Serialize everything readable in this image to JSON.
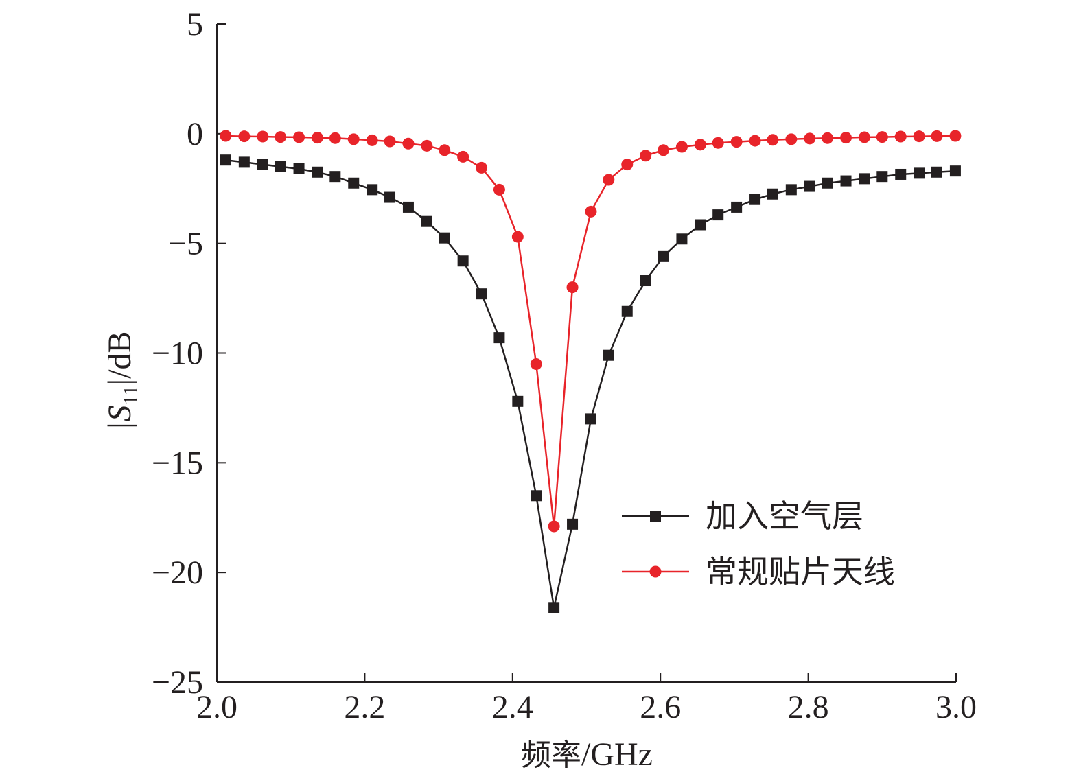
{
  "chart_data": {
    "type": "line",
    "title": "",
    "xlabel_prefix": "频率",
    "xlabel_unit": "/GHz",
    "ylabel_main": "|S",
    "ylabel_sub": "11",
    "ylabel_suffix": "|/dB",
    "xlim": [
      2.0,
      3.0
    ],
    "ylim": [
      -25,
      5
    ],
    "xticks": [
      2.0,
      2.2,
      2.4,
      2.6,
      2.8,
      3.0
    ],
    "xtick_labels": [
      "2.0",
      "2.2",
      "2.4",
      "2.6",
      "2.8",
      "3.0"
    ],
    "yticks": [
      5,
      0,
      -5,
      -10,
      -15,
      -20,
      -25
    ],
    "ytick_labels": [
      "5",
      "0",
      "−5",
      "−10",
      "−15",
      "−20",
      "−25"
    ],
    "legend_position": "lower-right",
    "grid": false,
    "series": [
      {
        "name": "加入空气层",
        "color": "#231f20",
        "marker": "square",
        "x": [
          2.012,
          2.037,
          2.062,
          2.086,
          2.111,
          2.136,
          2.16,
          2.185,
          2.21,
          2.234,
          2.259,
          2.284,
          2.308,
          2.333,
          2.358,
          2.382,
          2.407,
          2.432,
          2.456,
          2.481,
          2.506,
          2.53,
          2.555,
          2.58,
          2.604,
          2.629,
          2.654,
          2.678,
          2.703,
          2.728,
          2.752,
          2.777,
          2.802,
          2.826,
          2.851,
          2.876,
          2.9,
          2.925,
          2.95,
          2.974,
          2.999
        ],
        "y": [
          -1.2,
          -1.3,
          -1.4,
          -1.5,
          -1.6,
          -1.75,
          -1.95,
          -2.25,
          -2.55,
          -2.9,
          -3.35,
          -4.0,
          -4.75,
          -5.8,
          -7.3,
          -9.3,
          -12.2,
          -16.5,
          -21.6,
          -17.8,
          -13.0,
          -10.1,
          -8.1,
          -6.7,
          -5.6,
          -4.8,
          -4.15,
          -3.7,
          -3.35,
          -3.0,
          -2.75,
          -2.55,
          -2.4,
          -2.25,
          -2.15,
          -2.05,
          -1.95,
          -1.85,
          -1.8,
          -1.75,
          -1.7
        ]
      },
      {
        "name": "常规贴片天线",
        "color": "#e8242a",
        "marker": "circle",
        "x": [
          2.012,
          2.037,
          2.062,
          2.086,
          2.111,
          2.136,
          2.16,
          2.185,
          2.21,
          2.234,
          2.259,
          2.284,
          2.308,
          2.333,
          2.358,
          2.382,
          2.407,
          2.432,
          2.456,
          2.481,
          2.506,
          2.53,
          2.555,
          2.58,
          2.604,
          2.629,
          2.654,
          2.678,
          2.703,
          2.728,
          2.752,
          2.777,
          2.802,
          2.826,
          2.851,
          2.876,
          2.9,
          2.925,
          2.95,
          2.974,
          2.999
        ],
        "y": [
          -0.1,
          -0.12,
          -0.13,
          -0.15,
          -0.16,
          -0.18,
          -0.2,
          -0.25,
          -0.3,
          -0.35,
          -0.45,
          -0.55,
          -0.75,
          -1.05,
          -1.55,
          -2.55,
          -4.7,
          -10.5,
          -17.9,
          -7.0,
          -3.55,
          -2.1,
          -1.4,
          -1.0,
          -0.75,
          -0.6,
          -0.5,
          -0.42,
          -0.37,
          -0.32,
          -0.28,
          -0.25,
          -0.22,
          -0.2,
          -0.18,
          -0.16,
          -0.15,
          -0.13,
          -0.12,
          -0.11,
          -0.1
        ]
      }
    ]
  }
}
